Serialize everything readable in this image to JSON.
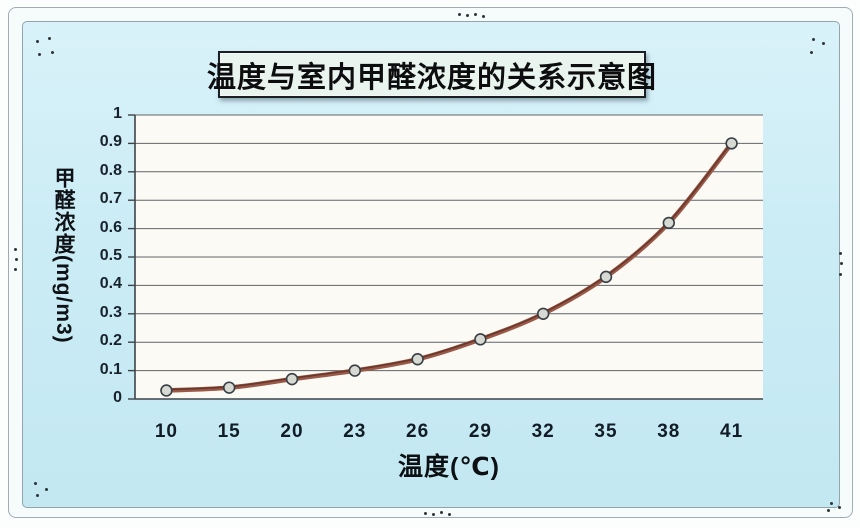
{
  "title": "温度与室内甲醛浓度的关系示意图",
  "chart_data": {
    "type": "line",
    "title": "温度与室内甲醛浓度的关系示意图",
    "categories": [
      "10",
      "15",
      "20",
      "23",
      "26",
      "29",
      "32",
      "35",
      "38",
      "41"
    ],
    "values": [
      0.03,
      0.04,
      0.07,
      0.1,
      0.14,
      0.21,
      0.3,
      0.43,
      0.62,
      0.9
    ],
    "xlabel": "温度(℃)",
    "ylabel": "甲醛浓度(mg/m3)",
    "ylim": [
      0,
      1
    ],
    "ytick_step": 0.1,
    "ytick_labels": [
      "0",
      "0.1",
      "0.2",
      "0.3",
      "0.4",
      "0.5",
      "0.6",
      "0.7",
      "0.8",
      "0.9",
      "1"
    ],
    "grid": true,
    "legend": "none",
    "smooth": true
  },
  "colors": {
    "panel_bg": "#cbecf5",
    "plot_bg": "#fbfaf4",
    "gridline": "#60656a",
    "axis": "#3d4449",
    "line_outer": "#9a5948",
    "line_inner": "#6b392c",
    "marker_fill": "#d7d9d3",
    "marker_stroke": "#383f45",
    "title_box_bg": "#e9f4ee",
    "frame_line": "#93a4ab",
    "text": "#0d0d0f"
  }
}
